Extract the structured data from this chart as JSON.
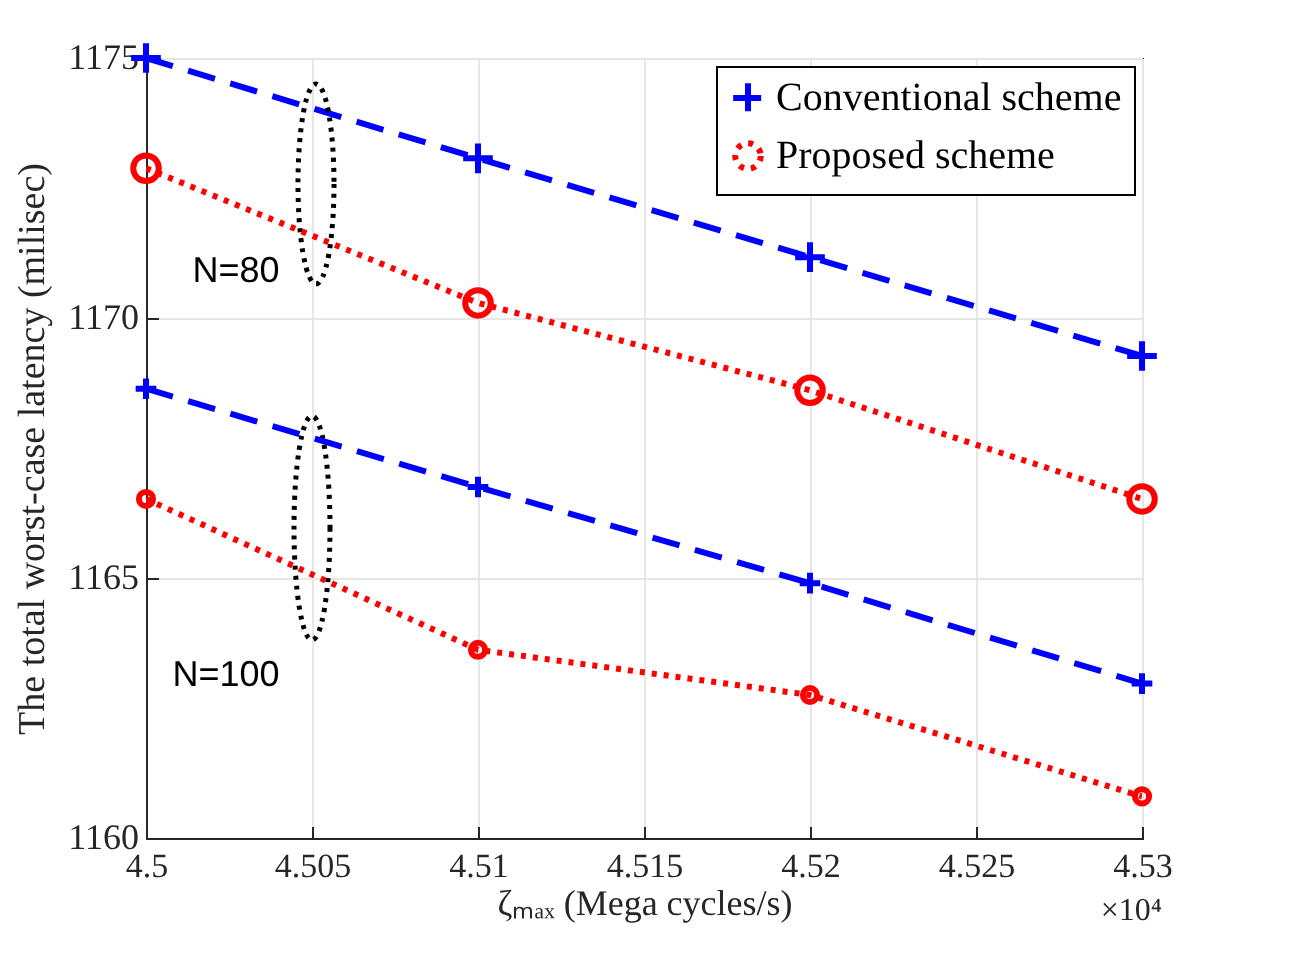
{
  "chart_data": {
    "type": "line",
    "xlabel": "ζₘₐₓ (Mega cycles/s)",
    "ylabel": "The total worst-case latency (milisec)",
    "x": [
      4.5,
      4.51,
      4.52,
      4.53
    ],
    "series": [
      {
        "name": "Conventional scheme",
        "color": "#0000ff",
        "marker": "cross",
        "line_style": "dashed",
        "values": [
          1175.0,
          1173.07,
          1171.17,
          1169.27
        ]
      },
      {
        "name": "Proposed scheme",
        "color": "#ff0000",
        "marker": "circle",
        "line_style": "dotted",
        "values": [
          1172.88,
          1170.29,
          1168.61,
          1166.52
        ]
      },
      {
        "color": "#0000ff",
        "marker": "cross",
        "line_style": "dashed",
        "values": [
          1168.64,
          1166.75,
          1164.9,
          1162.97
        ]
      },
      {
        "color": "#ff0000",
        "marker": "circle",
        "line_style": "dotted",
        "values": [
          1166.52,
          1163.62,
          1162.75,
          1160.8
        ]
      }
    ],
    "xlim": [
      4.5,
      4.53
    ],
    "xticks": [
      4.5,
      4.505,
      4.51,
      4.515,
      4.52,
      4.525,
      4.53
    ],
    "ylim": [
      1160,
      1175
    ],
    "yticks": [
      1160,
      1165,
      1170,
      1175
    ],
    "annotations": [
      "N=80",
      "N=100",
      "×10⁴"
    ],
    "grid": true,
    "legend": "top right"
  }
}
